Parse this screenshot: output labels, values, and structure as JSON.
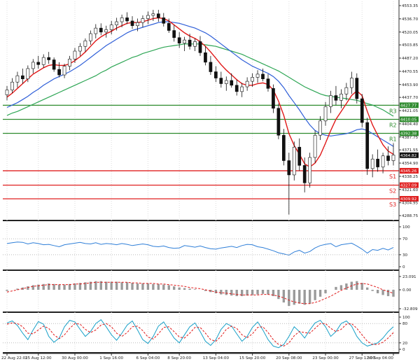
{
  "chart_data": {
    "type": "candlestick",
    "main": {
      "y_ticks": [
        "4553.35",
        "4536.70",
        "4520.05",
        "4503.85",
        "4487.20",
        "4470.55",
        "4453.90",
        "4437.70",
        "4421.05",
        "4404.40",
        "4387.75",
        "4371.55",
        "4354.90",
        "4338.25",
        "4321.60",
        "4304.95",
        "4288.75"
      ],
      "y_tick_values": [
        4553.35,
        4536.7,
        4520.05,
        4503.85,
        4487.2,
        4470.55,
        4453.9,
        4437.7,
        4421.05,
        4404.4,
        4387.75,
        4371.55,
        4354.9,
        4338.25,
        4321.6,
        4304.95,
        4288.75
      ],
      "current_price": 4364.82,
      "current_price_label": "4364.82",
      "levels": [
        {
          "name": "R3",
          "value": 4427.77,
          "label": "4427.77",
          "color": "#2e8b2e"
        },
        {
          "name": "R2",
          "value": 4410.05,
          "label": "4410.05",
          "color": "#2e8b2e"
        },
        {
          "name": "R1",
          "value": 4392.38,
          "label": "4392.38",
          "color": "#2e8b2e"
        },
        {
          "name": "S1",
          "value": 4345.26,
          "label": "4345.26",
          "color": "#e02020"
        },
        {
          "name": "S2",
          "value": 4327.09,
          "label": "4327.09",
          "color": "#e02020"
        },
        {
          "name": "S3",
          "value": 4309.92,
          "label": "4309.92",
          "color": "#e02020"
        }
      ],
      "candles": [
        [
          4441,
          4452,
          4434,
          4447
        ],
        [
          4447,
          4462,
          4443,
          4457
        ],
        [
          4457,
          4470,
          4450,
          4465
        ],
        [
          4465,
          4474,
          4455,
          4461
        ],
        [
          4461,
          4478,
          4457,
          4474
        ],
        [
          4474,
          4486,
          4468,
          4482
        ],
        [
          4482,
          4490,
          4474,
          4479
        ],
        [
          4479,
          4492,
          4475,
          4488
        ],
        [
          4488,
          4495,
          4480,
          4485
        ],
        [
          4485,
          4488,
          4470,
          4473
        ],
        [
          4473,
          4482,
          4463,
          4466
        ],
        [
          4466,
          4480,
          4462,
          4477
        ],
        [
          4477,
          4490,
          4472,
          4486
        ],
        [
          4486,
          4500,
          4481,
          4496
        ],
        [
          4496,
          4506,
          4490,
          4502
        ],
        [
          4502,
          4512,
          4495,
          4509
        ],
        [
          4509,
          4522,
          4504,
          4518
        ],
        [
          4518,
          4530,
          4512,
          4525
        ],
        [
          4525,
          4531,
          4516,
          4520
        ],
        [
          4520,
          4528,
          4513,
          4523
        ],
        [
          4523,
          4534,
          4517,
          4529
        ],
        [
          4529,
          4538,
          4522,
          4533
        ],
        [
          4533,
          4542,
          4526,
          4538
        ],
        [
          4538,
          4545,
          4530,
          4534
        ],
        [
          4534,
          4540,
          4524,
          4528
        ],
        [
          4528,
          4537,
          4521,
          4532
        ],
        [
          4532,
          4541,
          4526,
          4537
        ],
        [
          4537,
          4546,
          4530,
          4541
        ],
        [
          4541,
          4548,
          4534,
          4543
        ],
        [
          4543,
          4548,
          4533,
          4538
        ],
        [
          4538,
          4544,
          4527,
          4531
        ],
        [
          4531,
          4537,
          4519,
          4522
        ],
        [
          4522,
          4529,
          4508,
          4513
        ],
        [
          4513,
          4520,
          4500,
          4506
        ],
        [
          4506,
          4514,
          4496,
          4510
        ],
        [
          4510,
          4518,
          4498,
          4502
        ],
        [
          4502,
          4512,
          4496,
          4508
        ],
        [
          4508,
          4515,
          4490,
          4494
        ],
        [
          4494,
          4502,
          4478,
          4482
        ],
        [
          4482,
          4490,
          4466,
          4470
        ],
        [
          4470,
          4477,
          4457,
          4462
        ],
        [
          4462,
          4470,
          4450,
          4455
        ],
        [
          4455,
          4464,
          4446,
          4459
        ],
        [
          4459,
          4468,
          4450,
          4453
        ],
        [
          4453,
          4460,
          4440,
          4445
        ],
        [
          4445,
          4456,
          4438,
          4451
        ],
        [
          4451,
          4463,
          4446,
          4458
        ],
        [
          4458,
          4468,
          4451,
          4463
        ],
        [
          4463,
          4472,
          4456,
          4467
        ],
        [
          4467,
          4474,
          4458,
          4461
        ],
        [
          4461,
          4467,
          4445,
          4449
        ],
        [
          4449,
          4454,
          4418,
          4424
        ],
        [
          4424,
          4430,
          4385,
          4390
        ],
        [
          4390,
          4398,
          4352,
          4358
        ],
        [
          4358,
          4368,
          4290,
          4340
        ],
        [
          4340,
          4382,
          4333,
          4375
        ],
        [
          4375,
          4386,
          4345,
          4352
        ],
        [
          4352,
          4362,
          4318,
          4330
        ],
        [
          4330,
          4368,
          4324,
          4362
        ],
        [
          4362,
          4396,
          4355,
          4390
        ],
        [
          4390,
          4414,
          4384,
          4408
        ],
        [
          4408,
          4432,
          4402,
          4426
        ],
        [
          4426,
          4446,
          4418,
          4440
        ],
        [
          4440,
          4452,
          4428,
          4434
        ],
        [
          4434,
          4448,
          4424,
          4442
        ],
        [
          4442,
          4456,
          4434,
          4450
        ],
        [
          4450,
          4470,
          4442,
          4462
        ],
        [
          4462,
          4468,
          4430,
          4436
        ],
        [
          4436,
          4442,
          4400,
          4406
        ],
        [
          4406,
          4412,
          4340,
          4348
        ],
        [
          4348,
          4366,
          4337,
          4360
        ],
        [
          4360,
          4372,
          4344,
          4350
        ],
        [
          4350,
          4368,
          4342,
          4364
        ],
        [
          4364,
          4376,
          4352,
          4358
        ],
        [
          4358,
          4380,
          4352,
          4365
        ]
      ],
      "ma_fast": [
        4438,
        4443,
        4449,
        4455,
        4461,
        4467,
        4471,
        4475,
        4478,
        4479,
        4478,
        4478,
        4480,
        4484,
        4489,
        4495,
        4502,
        4509,
        4514,
        4518,
        4521,
        4525,
        4528,
        4531,
        4532,
        4532,
        4533,
        4535,
        4537,
        4538,
        4537,
        4534,
        4529,
        4524,
        4519,
        4515,
        4512,
        4508,
        4502,
        4495,
        4487,
        4479,
        4472,
        4466,
        4460,
        4455,
        4453,
        4453,
        4455,
        4456,
        4454,
        4447,
        4433,
        4415,
        4392,
        4377,
        4366,
        4354,
        4350,
        4355,
        4365,
        4380,
        4396,
        4410,
        4420,
        4430,
        4440,
        4446,
        4440,
        4420,
        4403,
        4390,
        4378,
        4370,
        4366
      ],
      "ma_mid": [
        4425,
        4428,
        4431,
        4435,
        4439,
        4444,
        4448,
        4453,
        4457,
        4461,
        4464,
        4467,
        4470,
        4474,
        4478,
        4483,
        4488,
        4493,
        4498,
        4503,
        4507,
        4511,
        4515,
        4519,
        4522,
        4524,
        4526,
        4528,
        4530,
        4532,
        4533,
        4533,
        4532,
        4531,
        4529,
        4527,
        4525,
        4522,
        4519,
        4515,
        4510,
        4505,
        4500,
        4495,
        4490,
        4485,
        4481,
        4477,
        4474,
        4471,
        4468,
        4464,
        4458,
        4450,
        4440,
        4431,
        4422,
        4412,
        4403,
        4396,
        4392,
        4390,
        4389,
        4390,
        4391,
        4392,
        4394,
        4397,
        4398,
        4396,
        4392,
        4388,
        4384,
        4380,
        4376
      ],
      "ma_slow": [
        4415,
        4418,
        4420,
        4423,
        4426,
        4429,
        4432,
        4435,
        4438,
        4441,
        4444,
        4447,
        4450,
        4453,
        4456,
        4459,
        4462,
        4465,
        4469,
        4472,
        4476,
        4479,
        4482,
        4485,
        4488,
        4490,
        4493,
        4495,
        4497,
        4499,
        4501,
        4502,
        4503,
        4504,
        4505,
        4505,
        4505,
        4505,
        4504,
        4503,
        4502,
        4500,
        4498,
        4496,
        4494,
        4492,
        4489,
        4486,
        4483,
        4480,
        4477,
        4474,
        4471,
        4467,
        4463,
        4459,
        4455,
        4451,
        4448,
        4445,
        4442,
        4440,
        4439,
        4438,
        4437,
        4436,
        4435,
        4434,
        4432,
        4430,
        4428,
        4425,
        4422,
        4418,
        4414
      ]
    },
    "rsi": {
      "y_ticks": [
        "100",
        "70",
        "30",
        "0"
      ],
      "y_tick_values": [
        100,
        70,
        30,
        0
      ],
      "values": [
        58,
        60,
        62,
        61,
        57,
        60,
        58,
        55,
        56,
        53,
        50,
        55,
        57,
        59,
        61,
        58,
        57,
        60,
        56,
        58,
        57,
        55,
        58,
        56,
        53,
        55,
        57,
        55,
        51,
        50,
        52,
        48,
        46,
        47,
        53,
        51,
        49,
        52,
        48,
        45,
        44,
        47,
        49,
        51,
        48,
        53,
        56,
        55,
        50,
        48,
        44,
        40,
        35,
        32,
        29,
        37,
        41,
        34,
        38,
        47,
        53,
        56,
        58,
        50,
        55,
        57,
        59,
        52,
        44,
        34,
        43,
        41,
        46,
        42,
        48
      ]
    },
    "macd": {
      "y_ticks": [
        "23.091",
        "0.00",
        "-32.809"
      ],
      "y_tick_values": [
        23.091,
        0,
        -32.809
      ],
      "hist": [
        -2,
        0,
        2,
        4,
        6,
        8,
        9,
        10,
        11,
        10,
        9,
        9,
        10,
        11,
        12,
        13,
        14,
        15,
        15,
        14,
        14,
        14,
        13,
        13,
        12,
        11,
        11,
        11,
        10,
        10,
        9,
        8,
        6,
        4,
        3,
        2,
        1,
        0,
        -2,
        -4,
        -6,
        -8,
        -9,
        -10,
        -11,
        -11,
        -10,
        -9,
        -8,
        -7,
        -8,
        -11,
        -16,
        -22,
        -28,
        -26,
        -24,
        -26,
        -24,
        -18,
        -12,
        -6,
        0,
        5,
        8,
        11,
        14,
        15,
        12,
        4,
        -2,
        -6,
        -9,
        -11,
        -12
      ],
      "signal": [
        -4,
        -2,
        0,
        2,
        4,
        6,
        7,
        8,
        9,
        9,
        9,
        9,
        9,
        10,
        10,
        11,
        12,
        13,
        13,
        13,
        13,
        13,
        13,
        13,
        12,
        12,
        11,
        11,
        11,
        10,
        10,
        9,
        8,
        7,
        6,
        4,
        3,
        2,
        0,
        -2,
        -4,
        -5,
        -6,
        -7,
        -8,
        -9,
        -9,
        -9,
        -9,
        -8,
        -8,
        -9,
        -11,
        -14,
        -18,
        -21,
        -23,
        -24,
        -24,
        -22,
        -19,
        -15,
        -11,
        -6,
        -1,
        3,
        7,
        10,
        11,
        10,
        7,
        4,
        0,
        -3,
        -6
      ]
    },
    "stoch": {
      "y_ticks": [
        "100",
        "80",
        "20",
        "0"
      ],
      "y_tick_values": [
        100,
        80,
        20,
        0
      ],
      "k": [
        82,
        88,
        74,
        50,
        30,
        60,
        86,
        78,
        40,
        22,
        35,
        70,
        90,
        85,
        62,
        40,
        55,
        80,
        92,
        70,
        45,
        28,
        50,
        75,
        88,
        60,
        30,
        18,
        40,
        72,
        85,
        60,
        35,
        20,
        45,
        70,
        82,
        55,
        25,
        12,
        30,
        62,
        80,
        72,
        48,
        25,
        40,
        68,
        85,
        60,
        30,
        10,
        5,
        15,
        40,
        70,
        55,
        35,
        60,
        82,
        90,
        70,
        40,
        55,
        80,
        88,
        72,
        40,
        20,
        10,
        15,
        20,
        35,
        55,
        70
      ],
      "d": [
        78,
        82,
        80,
        70,
        50,
        48,
        60,
        72,
        65,
        45,
        33,
        45,
        65,
        80,
        78,
        62,
        52,
        60,
        75,
        80,
        70,
        50,
        40,
        52,
        70,
        72,
        58,
        38,
        32,
        48,
        68,
        70,
        55,
        38,
        35,
        50,
        68,
        68,
        50,
        30,
        25,
        40,
        62,
        72,
        65,
        45,
        36,
        48,
        68,
        70,
        52,
        30,
        15,
        10,
        20,
        42,
        55,
        52,
        50,
        65,
        80,
        80,
        65,
        55,
        62,
        78,
        80,
        65,
        45,
        25,
        15,
        15,
        22,
        35,
        52
      ]
    },
    "x_ticks": [
      "22 Aug 22:01",
      "25 Aug 12:00",
      "30 Aug 00:00",
      "1 Sep 16:00",
      "6 Sep 04:00",
      "8 Sep 20:00",
      "13 Sep 04:00",
      "15 Sep 20:00",
      "20 Sep 08:00",
      "23 Sep 00:00",
      "27 Sep 12:00",
      "30 Sep 04:00"
    ],
    "x_tick_bars": [
      0,
      6,
      13,
      20,
      27,
      33,
      40,
      47,
      54,
      61,
      68,
      74
    ]
  }
}
